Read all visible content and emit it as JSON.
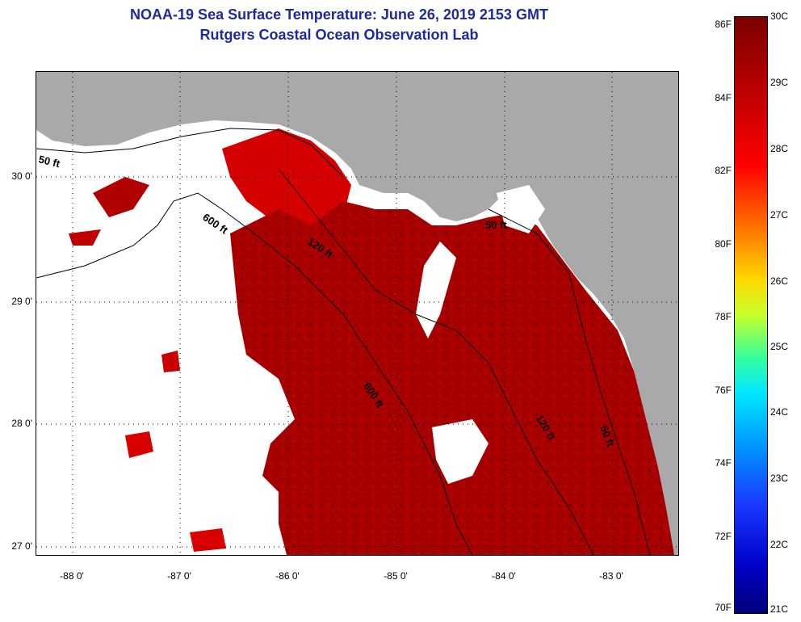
{
  "title": "NOAA-19 Sea Surface Temperature:  June 26, 2019 2153 GMT",
  "subtitle": "Rutgers Coastal Ocean Observation Lab",
  "map": {
    "lat_labels": [
      "30 0'",
      "29 0'",
      "28 0'",
      "27 0'"
    ],
    "lon_labels": [
      "-88 0'",
      "-87 0'",
      "-86 0'",
      "-85 0'",
      "-84 0'",
      "-83 0'"
    ],
    "contour_labels": [
      "50 ft",
      "600 ft",
      "120 ft",
      "50 ft",
      "600 ft",
      "120 ft",
      "50 ft"
    ],
    "land_color": "#a9a9a9",
    "sst_color": "#b30000"
  },
  "colorbar": {
    "f_labels": [
      "86F",
      "84F",
      "82F",
      "80F",
      "78F",
      "76F",
      "74F",
      "72F",
      "70F"
    ],
    "c_labels": [
      "30C",
      "29C",
      "28C",
      "27C",
      "26C",
      "25C",
      "24C",
      "23C",
      "22C",
      "21C"
    ]
  }
}
